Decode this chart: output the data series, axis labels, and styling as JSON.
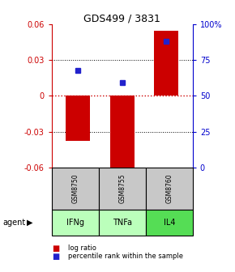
{
  "title": "GDS499 / 3831",
  "categories": [
    "IFNg",
    "TNFa",
    "IL4"
  ],
  "gsm_labels": [
    "GSM8750",
    "GSM8755",
    "GSM8760"
  ],
  "log_ratios": [
    -0.038,
    -0.065,
    0.055
  ],
  "percentile_ranks": [
    0.68,
    0.595,
    0.88
  ],
  "ylim_left": [
    -0.06,
    0.06
  ],
  "bar_color": "#cc0000",
  "dot_color": "#2222cc",
  "gray_cell_color": "#c8c8c8",
  "green_cell_colors": [
    "#bbffbb",
    "#bbffbb",
    "#55dd55"
  ],
  "zero_line_color": "#cc0000",
  "left_axis_color": "#cc0000",
  "right_axis_color": "#0000cc",
  "yticks_left": [
    -0.06,
    -0.03,
    0.0,
    0.03,
    0.06
  ],
  "ytick_labels_left": [
    "-0.06",
    "-0.03",
    "0",
    "0.03",
    "0.06"
  ],
  "yticks_right": [
    0.0,
    0.25,
    0.5,
    0.75,
    1.0
  ],
  "ytick_labels_right": [
    "0",
    "25",
    "50",
    "75",
    "100%"
  ]
}
